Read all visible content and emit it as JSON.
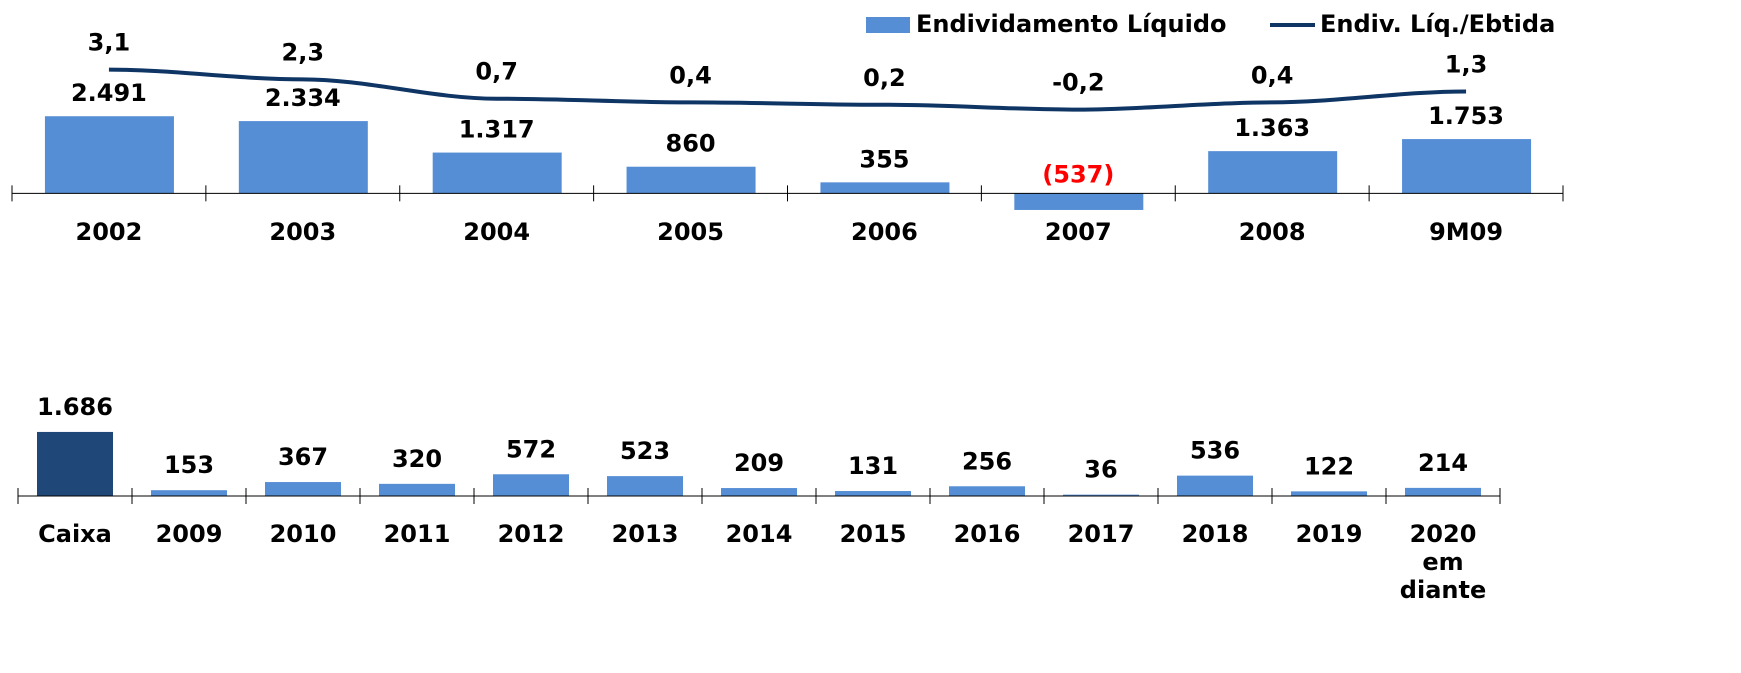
{
  "chart_data": [
    {
      "type": "bar_line",
      "categories": [
        "2002",
        "2003",
        "2004",
        "2005",
        "2006",
        "2007",
        "2008",
        "9M09"
      ],
      "series": [
        {
          "name": "Endividamento Líquido",
          "color": "#558ed5",
          "values": [
            2491,
            2334,
            1317,
            860,
            355,
            -537,
            1363,
            1753
          ],
          "value_labels": [
            "2.491",
            "2.334",
            "1.317",
            "860",
            "355",
            "(537)",
            "1.363",
            "1.753"
          ]
        },
        {
          "name": "Endiv. Líq./Ebtida",
          "color": "#0f3565",
          "axis": "y2",
          "values": [
            3.1,
            2.3,
            0.7,
            0.4,
            0.2,
            -0.2,
            0.4,
            1.3
          ],
          "value_labels": [
            "3,1",
            "2,3",
            "0,7",
            "0,4",
            "0,2",
            "-0,2",
            "0,4",
            "1,3"
          ]
        }
      ],
      "ylim": [
        -700,
        5600
      ],
      "y2lim": [
        -8.9,
        7.2
      ],
      "negative_label_color": "#ff0000",
      "legend": "top-right"
    },
    {
      "type": "bar",
      "categories": [
        "Caixa",
        "2009",
        "2010",
        "2011",
        "2012",
        "2013",
        "2014",
        "2015",
        "2016",
        "2017",
        "2018",
        "2019",
        "2020 em diante"
      ],
      "values": [
        1686,
        153,
        367,
        320,
        572,
        523,
        209,
        131,
        256,
        36,
        536,
        122,
        214
      ],
      "value_labels": [
        "1.686",
        "153",
        "367",
        "320",
        "572",
        "523",
        "209",
        "131",
        "256",
        "36",
        "536",
        "122",
        "214"
      ],
      "colors": [
        "#1f4778",
        "#558ed5",
        "#558ed5",
        "#558ed5",
        "#558ed5",
        "#558ed5",
        "#558ed5",
        "#558ed5",
        "#558ed5",
        "#558ed5",
        "#558ed5",
        "#558ed5",
        "#558ed5"
      ],
      "ylim": [
        0,
        2790
      ]
    }
  ]
}
